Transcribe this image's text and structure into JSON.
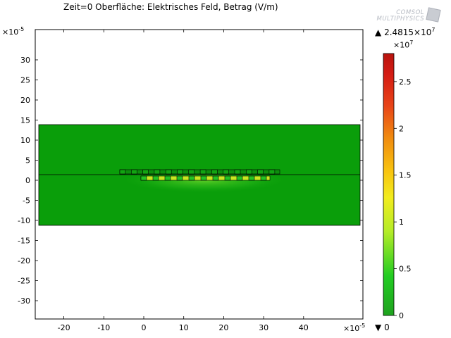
{
  "title": "Zeit=0   Oberfläche: Elektrisches Feld, Betrag (V/m)",
  "logo": {
    "line1": "COMSOL",
    "line2": "MULTIPHYSICS"
  },
  "axes": {
    "x_exponent_base": "×10",
    "x_exponent_power": "-5",
    "y_exponent_base": "×10",
    "y_exponent_power": "-5",
    "x_ticks": [
      "-20",
      "-10",
      "0",
      "10",
      "20",
      "30",
      "40"
    ],
    "y_ticks": [
      "30",
      "25",
      "20",
      "15",
      "10",
      "5",
      "0",
      "-5",
      "-10",
      "-15",
      "-20",
      "-25",
      "-30"
    ]
  },
  "colorbar": {
    "max_marker": "▲",
    "max_value": "2.4815×10",
    "max_value_power": "7",
    "min_marker": "▼",
    "min_value": "0",
    "scale_base": "×10",
    "scale_power": "7",
    "ticks": [
      "2.5",
      "2",
      "1.5",
      "1",
      "0.5",
      "0"
    ]
  },
  "colors": {
    "field_background": "#0a9e0a",
    "electrode_fill": "#22c422",
    "hotspot_fill": "#c8e820",
    "outline": "#000000"
  },
  "chart_data": {
    "type": "heatmap",
    "quantity": "Elektrisches Feld, Betrag (V/m)",
    "time": 0,
    "xlim": [
      -27,
      55
    ],
    "ylim": [
      -35,
      35
    ],
    "x_scale": 1e-05,
    "y_scale": 1e-05,
    "domain_x": [
      -26.5,
      54.5
    ],
    "domain_y": [
      -11.5,
      14
    ],
    "interface_y": 1.2,
    "color_range": [
      0,
      28000000.0
    ],
    "max_value": 24815000.0,
    "min_value": 0
  }
}
